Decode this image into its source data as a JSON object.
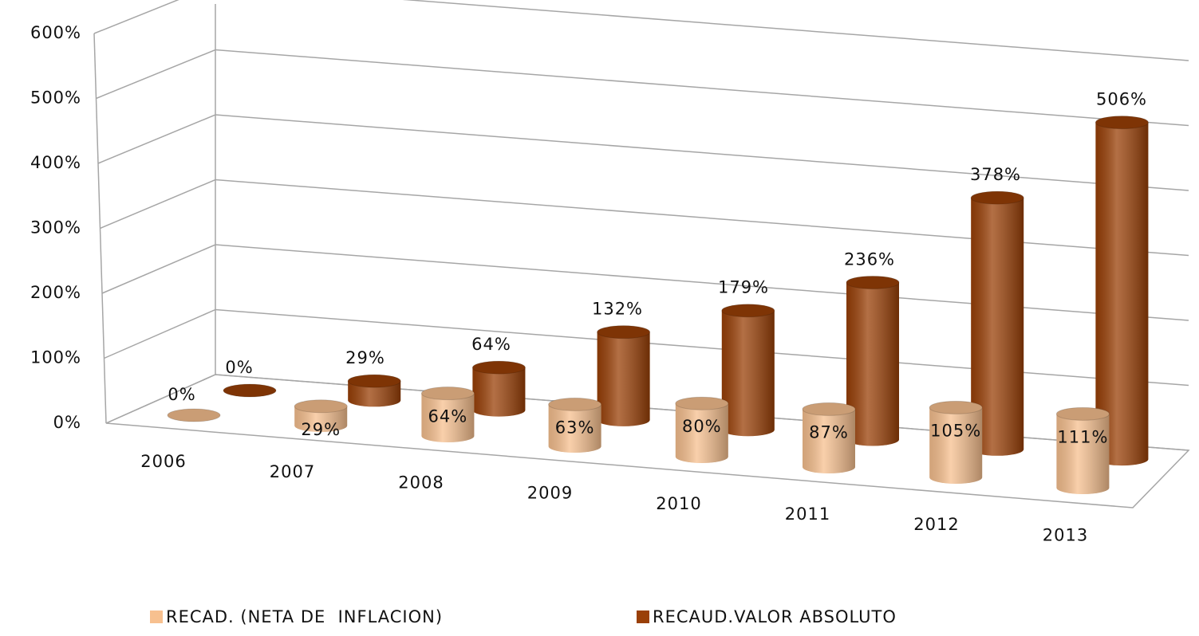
{
  "chart_data": {
    "type": "bar3d",
    "categories": [
      "2006",
      "2007",
      "2008",
      "2009",
      "2010",
      "2011",
      "2012",
      "2013"
    ],
    "series": [
      {
        "name": "RECAD. (NETA DE  INFLACION)",
        "color": "#f7c08f",
        "values": [
          0,
          29,
          64,
          63,
          80,
          87,
          105,
          111
        ],
        "value_labels": [
          "0%",
          "29%",
          "64%",
          "63%",
          "80%",
          "87%",
          "105%",
          "111%"
        ]
      },
      {
        "name": "RECAUD.VALOR ABSOLUTO",
        "color": "#9a4007",
        "values": [
          0,
          29,
          64,
          132,
          179,
          236,
          378,
          506
        ],
        "value_labels": [
          "0%",
          "29%",
          "64%",
          "132%",
          "179%",
          "236%",
          "378%",
          "506%"
        ]
      }
    ],
    "ylim": [
      0,
      600
    ],
    "yticks": [
      {
        "value": 0,
        "label": "0%"
      },
      {
        "value": 100,
        "label": "100%"
      },
      {
        "value": 200,
        "label": "200%"
      },
      {
        "value": 300,
        "label": "300%"
      },
      {
        "value": 400,
        "label": "400%"
      },
      {
        "value": 500,
        "label": "500%"
      },
      {
        "value": 600,
        "label": "600%"
      }
    ],
    "grid": true,
    "legend": "bottom"
  }
}
